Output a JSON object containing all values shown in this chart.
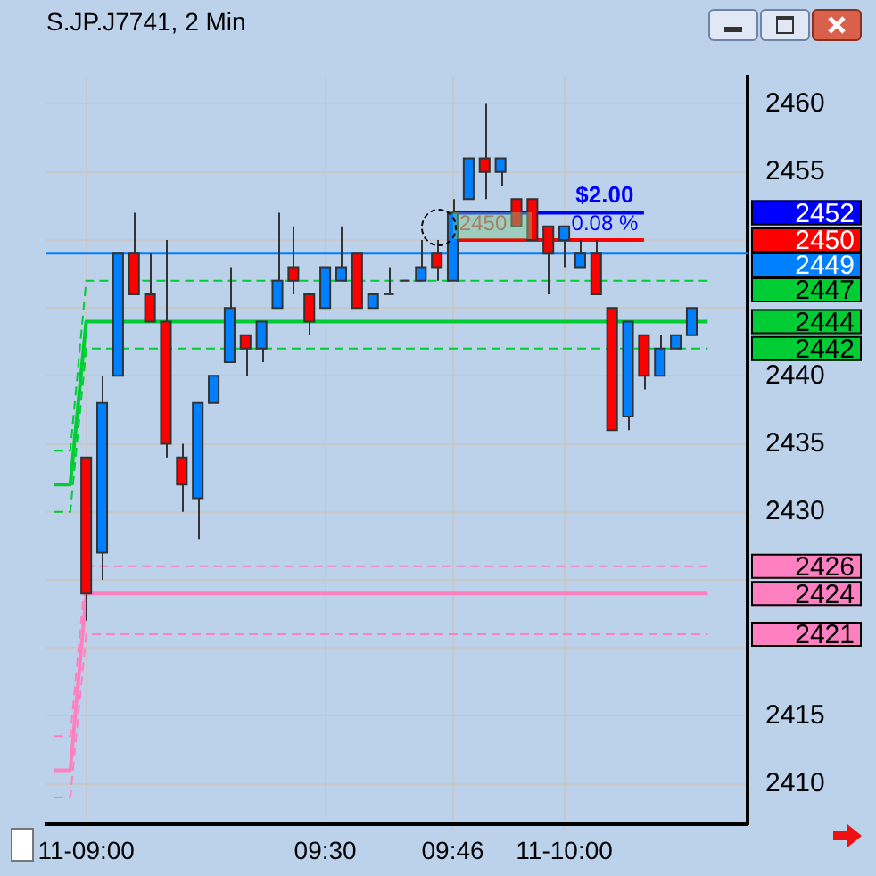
{
  "chart_data": {
    "type": "candlestick",
    "title": "S.JP.J7741, 2 Min",
    "categories": [
      null,
      null,
      "11-09:00",
      null,
      null,
      null,
      null,
      null,
      null,
      null,
      null,
      null,
      null,
      null,
      null,
      null,
      null,
      "09:30",
      null,
      null,
      null,
      null,
      null,
      null,
      null,
      "09:46",
      null,
      null,
      null,
      null,
      null,
      null,
      "11-10:00",
      null,
      null,
      null,
      null,
      null,
      null,
      null,
      null,
      null,
      null,
      null
    ],
    "ohlc": [
      null,
      null,
      [
        2434,
        2434,
        2422,
        2424
      ],
      [
        2427,
        2440,
        2425,
        2438
      ],
      [
        2440,
        2449,
        2440,
        2449
      ],
      [
        2449,
        2452,
        2446,
        2446
      ],
      [
        2446,
        2449,
        2444,
        2444
      ],
      [
        2444,
        2450,
        2434,
        2435
      ],
      [
        2434,
        2435,
        2430,
        2432
      ],
      [
        2431,
        2438,
        2428,
        2438
      ],
      [
        2438,
        2440,
        2438,
        2440
      ],
      [
        2441,
        2448,
        2441,
        2445
      ],
      [
        2443,
        2443,
        2440,
        2442
      ],
      [
        2442,
        2444,
        2441,
        2444
      ],
      [
        2445,
        2452,
        2445,
        2447
      ],
      [
        2448,
        2451,
        2446,
        2447
      ],
      [
        2446,
        2446,
        2443,
        2444
      ],
      [
        2445,
        2448,
        2445,
        2448
      ],
      [
        2447,
        2451,
        2447,
        2448
      ],
      [
        2449,
        2449,
        2445,
        2445
      ],
      [
        2445,
        2446,
        2445,
        2446
      ],
      [
        2446,
        2448,
        2446,
        2446
      ],
      [
        2447,
        2447,
        2447,
        2447
      ],
      [
        2447,
        2450,
        2447,
        2448
      ],
      [
        2449,
        2450,
        2447,
        2448
      ],
      [
        2447,
        2453,
        2447,
        2452
      ],
      [
        2453,
        2456,
        2453,
        2456
      ],
      [
        2456,
        2460,
        2453,
        2455
      ],
      [
        2455,
        2456,
        2454,
        2456
      ],
      [
        2453,
        2453,
        2451,
        2451
      ],
      [
        2453,
        2453,
        2450,
        2450
      ],
      [
        2451,
        2451,
        2446,
        2449
      ],
      [
        2450,
        2451,
        2448,
        2451
      ],
      [
        2448,
        2450,
        2448,
        2449
      ],
      [
        2449,
        2450,
        2446,
        2446
      ],
      [
        2445,
        2445,
        2436,
        2436
      ],
      [
        2437,
        2444,
        2436,
        2444
      ],
      [
        2443,
        2443,
        2439,
        2440
      ],
      [
        2440,
        2443,
        2440,
        2442
      ],
      [
        2442,
        2443,
        2442,
        2443
      ],
      [
        2443,
        2445,
        2443,
        2445
      ],
      null,
      null,
      null
    ],
    "colors": [
      null,
      null,
      "#ff0000",
      "#0080ff",
      "#0080ff",
      "#ff0000",
      "#ff0000",
      "#ff0000",
      "#ff0000",
      "#0080ff",
      "#0080ff",
      "#0080ff",
      "#ff0000",
      "#0080ff",
      "#0080ff",
      "#ff0000",
      "#ff0000",
      "#0080ff",
      "#0080ff",
      "#ff0000",
      "#0080ff",
      "#333333",
      "#333333",
      "#0080ff",
      "#ff0000",
      "#0080ff",
      "#0080ff",
      "#ff0000",
      "#0080ff",
      "#ff0000",
      "#ff0000",
      "#ff0000",
      "#0080ff",
      "#0080ff",
      "#ff0000",
      "#ff0000",
      "#0080ff",
      "#ff0000",
      "#0080ff",
      "#0080ff",
      "#0080ff",
      null,
      null,
      null
    ],
    "series": [
      {
        "type": "line",
        "color": "#ff80c0",
        "line_style": "dashed",
        "values": [
          2413.5,
          2413.5,
          2426,
          2426,
          2426,
          2426,
          2426,
          2426,
          2426,
          2426,
          2426,
          2426,
          2426,
          2426,
          2426,
          2426,
          2426,
          2426,
          2426,
          2426,
          2426,
          2426,
          2426,
          2426,
          2426,
          2426,
          2426,
          2426,
          2426,
          2426,
          2426,
          2426,
          2426,
          2426,
          2426,
          2426,
          2426,
          2426,
          2426,
          2426,
          2426,
          2426,
          null,
          null
        ]
      },
      {
        "type": "line",
        "color": "#ff80c0",
        "line_style": "solid",
        "values": [
          2411,
          2411,
          2424,
          2424,
          2424,
          2424,
          2424,
          2424,
          2424,
          2424,
          2424,
          2424,
          2424,
          2424,
          2424,
          2424,
          2424,
          2424,
          2424,
          2424,
          2424,
          2424,
          2424,
          2424,
          2424,
          2424,
          2424,
          2424,
          2424,
          2424,
          2424,
          2424,
          2424,
          2424,
          2424,
          2424,
          2424,
          2424,
          2424,
          2424,
          2424,
          2424,
          null,
          null
        ]
      },
      {
        "type": "line",
        "color": "#ff80c0",
        "line_style": "dashed",
        "values": [
          2409,
          2409,
          2421,
          2421,
          2421,
          2421,
          2421,
          2421,
          2421,
          2421,
          2421,
          2421,
          2421,
          2421,
          2421,
          2421,
          2421,
          2421,
          2421,
          2421,
          2421,
          2421,
          2421,
          2421,
          2421,
          2421,
          2421,
          2421,
          2421,
          2421,
          2421,
          2421,
          2421,
          2421,
          2421,
          2421,
          2421,
          2421,
          2421,
          2421,
          2421,
          2421,
          null,
          null
        ]
      },
      {
        "type": "line",
        "color": "#00cc33",
        "line_style": "dashed",
        "values": [
          2434.5,
          2434.5,
          2447,
          2447,
          null,
          null,
          2447,
          2447,
          2447,
          2447,
          2447,
          2447,
          2447,
          2447,
          2447,
          2447,
          2447,
          2447,
          2447,
          2447,
          2447,
          2447,
          2447,
          2447,
          2447,
          2447,
          2447,
          2447,
          2447,
          2447,
          2447,
          2447,
          2447,
          2447,
          null,
          2447,
          2447,
          2447,
          2447,
          2447,
          2447,
          2447,
          null,
          null
        ]
      },
      {
        "type": "line",
        "color": "#00cc33",
        "line_style": "solid",
        "values": [
          2432,
          2432,
          2444,
          2444,
          2444,
          2444,
          2444,
          2444,
          2444,
          2444,
          2444,
          2444,
          2444,
          2444,
          2444,
          2444,
          2444,
          2444,
          2444,
          2444,
          2444,
          2444,
          2444,
          2444,
          2444,
          2444,
          2444,
          2444,
          2444,
          2444,
          2444,
          2444,
          2444,
          2444,
          2444,
          2444,
          2444,
          2444,
          2444,
          2444,
          2444,
          2444,
          null,
          null
        ]
      },
      {
        "type": "line",
        "color": "#00cc33",
        "line_style": "dashed",
        "values": [
          2430,
          2430,
          2442,
          2442,
          2442,
          2442,
          2442,
          null,
          2442,
          2442,
          2442,
          2442,
          2442,
          2442,
          2442,
          2442,
          2442,
          2442,
          2442,
          2442,
          2442,
          2442,
          2442,
          2442,
          2442,
          2442,
          2442,
          2442,
          2442,
          2442,
          2442,
          2442,
          2442,
          2442,
          2442,
          null,
          null,
          2442,
          2442,
          2442,
          2442,
          2442,
          null,
          null
        ]
      },
      {
        "type": "line",
        "color": "#ff0000",
        "line_style": "solid",
        "values": [
          null,
          null,
          null,
          null,
          null,
          null,
          null,
          null,
          null,
          null,
          null,
          null,
          null,
          null,
          null,
          null,
          null,
          null,
          null,
          null,
          null,
          null,
          null,
          null,
          null,
          2450,
          2450,
          2450,
          2450,
          2450,
          2450,
          2450,
          2450,
          2450,
          2450,
          2450,
          2450,
          2450,
          null,
          null,
          null,
          null,
          null,
          null
        ]
      },
      {
        "type": "line",
        "color": "#0000ff",
        "line_style": "solid",
        "values": [
          null,
          null,
          null,
          null,
          null,
          null,
          null,
          null,
          null,
          null,
          null,
          null,
          null,
          null,
          null,
          null,
          null,
          null,
          null,
          null,
          null,
          null,
          null,
          null,
          null,
          2452,
          2452,
          2452,
          2452,
          2452,
          2452,
          2452,
          2452,
          2452,
          2452,
          2452,
          2452,
          2452,
          null,
          null,
          null,
          null,
          null,
          null
        ]
      }
    ],
    "ref_lines": [
      {
        "axis": "y",
        "value": 2449,
        "label": "2449",
        "color": "#0080ff"
      }
    ],
    "annotations": [
      "$2.00",
      "0.08 %",
      "2450",
      "2452",
      "2450",
      "2447",
      "2444",
      "2442",
      "2426",
      "2424",
      "2421"
    ],
    "ylim": [
      2407,
      2462
    ],
    "yticks": [
      2410,
      2415,
      {
        "value": 2420,
        "label": null
      },
      {
        "value": 2425,
        "label": null
      },
      2430,
      2435,
      2440,
      {
        "value": 2445,
        "label": null
      },
      {
        "value": 2450,
        "label": null
      },
      2455,
      2460
    ],
    "grid": true,
    "legend": false
  }
}
